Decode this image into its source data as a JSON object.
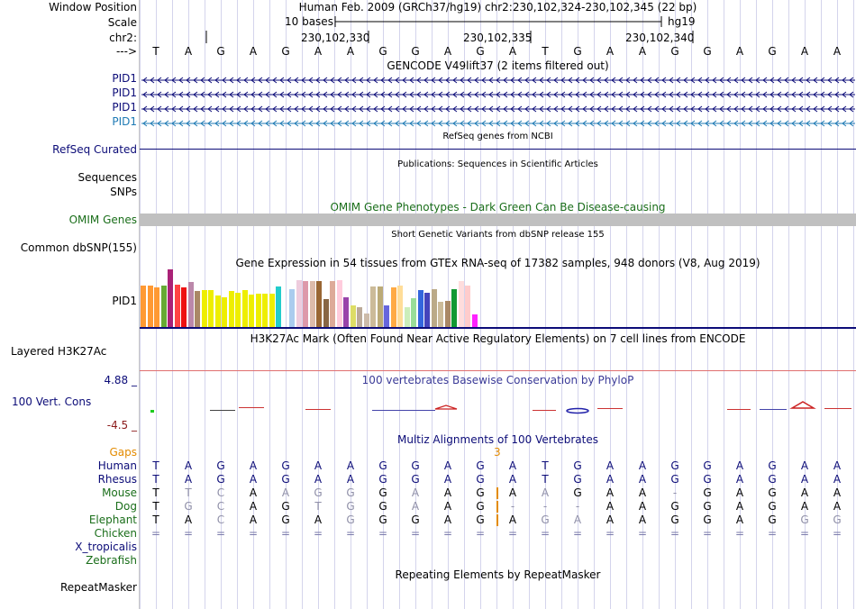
{
  "header": {
    "window_position_label": "Window Position",
    "assembly_text": "Human Feb. 2009 (GRCh37/hg19)   chr2:230,102,324-230,102,345 (22 bp)",
    "scale_label": "Scale",
    "scale_bar_text": "10 bases",
    "db_label": "hg19",
    "chrom_label": "chr2:",
    "coords": [
      "230,102,330",
      "230,102,335",
      "230,102,340"
    ],
    "strand_arrow": "--->",
    "bases": [
      "T",
      "A",
      "G",
      "A",
      "G",
      "A",
      "A",
      "G",
      "G",
      "A",
      "G",
      "A",
      "T",
      "G",
      "A",
      "A",
      "G",
      "G",
      "A",
      "G",
      "A",
      "A"
    ]
  },
  "gencode": {
    "title": "GENCODE V49lift37 (2 items filtered out)",
    "genes": [
      "PID1",
      "PID1",
      "PID1",
      "PID1"
    ],
    "colors": [
      "#0c0c78",
      "#0c0c78",
      "#0c0c78",
      "#1e7ab4"
    ]
  },
  "refseq": {
    "label": "RefSeq Curated",
    "title": "RefSeq genes from NCBI"
  },
  "publications": {
    "title": "Publications: Sequences in Scientific Articles",
    "labels": [
      "Sequences",
      "SNPs"
    ]
  },
  "omim": {
    "label": "OMIM Genes",
    "title": "OMIM Gene Phenotypes - Dark Green Can Be Disease-causing"
  },
  "dbsnp": {
    "label": "Common dbSNP(155)",
    "title": "Short Genetic Variants from dbSNP release 155"
  },
  "gtex": {
    "title": "Gene Expression in 54 tissues from GTEx RNA-seq of 17382 samples, 948 donors (V8, Aug 2019)",
    "label": "PID1",
    "bars": [
      {
        "v": 0.72,
        "c": "#ff9933"
      },
      {
        "v": 0.72,
        "c": "#ff9933"
      },
      {
        "v": 0.68,
        "c": "#ff9933"
      },
      {
        "v": 0.72,
        "c": "#66aa33"
      },
      {
        "v": 1.0,
        "c": "#aa2277"
      },
      {
        "v": 0.74,
        "c": "#ff4444"
      },
      {
        "v": 0.68,
        "c": "#ee1111"
      },
      {
        "v": 0.78,
        "c": "#bb88aa"
      },
      {
        "v": 0.62,
        "c": "#aa8866"
      },
      {
        "v": 0.64,
        "c": "#eeee00"
      },
      {
        "v": 0.64,
        "c": "#eeee00"
      },
      {
        "v": 0.55,
        "c": "#eeee00"
      },
      {
        "v": 0.52,
        "c": "#eeee00"
      },
      {
        "v": 0.62,
        "c": "#eeee00"
      },
      {
        "v": 0.6,
        "c": "#eeee00"
      },
      {
        "v": 0.64,
        "c": "#eeee00"
      },
      {
        "v": 0.56,
        "c": "#eeee00"
      },
      {
        "v": 0.58,
        "c": "#eeee00"
      },
      {
        "v": 0.58,
        "c": "#eeee00"
      },
      {
        "v": 0.58,
        "c": "#eeee00"
      },
      {
        "v": 0.7,
        "c": "#22cccc"
      },
      {
        "v": 0.0,
        "c": "#ffffff"
      },
      {
        "v": 0.66,
        "c": "#aaccee"
      },
      {
        "v": 0.82,
        "c": "#eeccdd"
      },
      {
        "v": 0.8,
        "c": "#dd99aa"
      },
      {
        "v": 0.8,
        "c": "#ddbbaa"
      },
      {
        "v": 0.8,
        "c": "#996633"
      },
      {
        "v": 0.48,
        "c": "#886644"
      },
      {
        "v": 0.8,
        "c": "#ddaa99"
      },
      {
        "v": 0.82,
        "c": "#ffccdd"
      },
      {
        "v": 0.52,
        "c": "#9944aa"
      },
      {
        "v": 0.38,
        "c": "#dddd66"
      },
      {
        "v": 0.34,
        "c": "#bbaa99"
      },
      {
        "v": 0.24,
        "c": "#ccbbaa"
      },
      {
        "v": 0.7,
        "c": "#ccbb99"
      },
      {
        "v": 0.7,
        "c": "#bbaa77"
      },
      {
        "v": 0.38,
        "c": "#6666dd"
      },
      {
        "v": 0.68,
        "c": "#ffaa44"
      },
      {
        "v": 0.72,
        "c": "#ffdd99"
      },
      {
        "v": 0.34,
        "c": "#cceebb"
      },
      {
        "v": 0.5,
        "c": "#99dd99"
      },
      {
        "v": 0.64,
        "c": "#3366dd"
      },
      {
        "v": 0.6,
        "c": "#4444bb"
      },
      {
        "v": 0.66,
        "c": "#bbaa88"
      },
      {
        "v": 0.44,
        "c": "#ccbb99"
      },
      {
        "v": 0.46,
        "c": "#aa8866"
      },
      {
        "v": 0.66,
        "c": "#119933"
      },
      {
        "v": 0.8,
        "c": "#ffdddd"
      },
      {
        "v": 0.72,
        "c": "#ffcccc"
      },
      {
        "v": 0.22,
        "c": "#ff22ff"
      }
    ]
  },
  "h3k27ac": {
    "label": "Layered H3K27Ac",
    "title": "H3K27Ac Mark (Often Found Near Active Regulatory Elements) on 7 cell lines from ENCODE"
  },
  "phylop": {
    "title": "100 vertebrates Basewise Conservation by PhyloP",
    "label": "100 Vert. Cons",
    "max": "4.88 _",
    "min": "-4.5 _"
  },
  "multiz": {
    "title": "Multiz Alignments of 100 Vertebrates",
    "gaps_label": "Gaps",
    "gap_count": "3",
    "species": [
      {
        "name": "Human",
        "color": "#0c0c78",
        "bases": [
          "T",
          "A",
          "G",
          "A",
          "G",
          "A",
          "A",
          "G",
          "G",
          "A",
          "G",
          "A",
          "T",
          "G",
          "A",
          "A",
          "G",
          "G",
          "A",
          "G",
          "A",
          "A"
        ],
        "dim": []
      },
      {
        "name": "Rhesus",
        "color": "#0c0c78",
        "bases": [
          "T",
          "A",
          "G",
          "A",
          "G",
          "A",
          "A",
          "G",
          "G",
          "A",
          "G",
          "A",
          "T",
          "G",
          "A",
          "A",
          "G",
          "G",
          "A",
          "G",
          "A",
          "A"
        ],
        "dim": []
      },
      {
        "name": "Mouse",
        "color": "#1a6e1a",
        "bases": [
          "T",
          "T",
          "C",
          "A",
          "A",
          "G",
          "G",
          "G",
          "A",
          "A",
          "G",
          "A",
          "A",
          "G",
          "A",
          "A",
          "-",
          "G",
          "A",
          "G",
          "A",
          "A"
        ],
        "dim": [
          1,
          2,
          4,
          5,
          6,
          8,
          12,
          16
        ]
      },
      {
        "name": "Dog",
        "color": "#1a6e1a",
        "bases": [
          "T",
          "G",
          "C",
          "A",
          "G",
          "T",
          "G",
          "G",
          "A",
          "A",
          "G",
          "-",
          "-",
          "-",
          "A",
          "A",
          "G",
          "G",
          "A",
          "G",
          "A",
          "A"
        ],
        "dim": [
          1,
          2,
          5,
          6,
          8,
          11,
          12,
          13
        ]
      },
      {
        "name": "Elephant",
        "color": "#1a6e1a",
        "bases": [
          "T",
          "A",
          "C",
          "A",
          "G",
          "A",
          "G",
          "G",
          "G",
          "A",
          "G",
          "A",
          "G",
          "A",
          "A",
          "A",
          "G",
          "G",
          "A",
          "G",
          "G",
          "G"
        ],
        "dim": [
          2,
          6,
          12,
          13,
          20,
          21
        ]
      },
      {
        "name": "Chicken",
        "color": "#1a6e1a",
        "bases": [
          "=",
          "=",
          "=",
          "=",
          "=",
          "=",
          "=",
          "=",
          "=",
          "=",
          "=",
          "=",
          "=",
          "=",
          "=",
          "=",
          "=",
          "=",
          "=",
          "=",
          "=",
          "="
        ],
        "dim": []
      },
      {
        "name": "X_tropicalis",
        "color": "#0c0c78",
        "bases": [],
        "dim": []
      },
      {
        "name": "Zebrafish",
        "color": "#1a6e1a",
        "bases": [],
        "dim": []
      }
    ]
  },
  "repeatmasker": {
    "label": "RepeatMasker",
    "title": "Repeating Elements by RepeatMasker"
  }
}
